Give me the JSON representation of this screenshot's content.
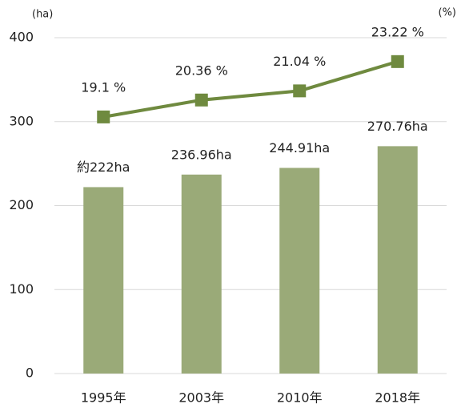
{
  "chart_data": {
    "type": "bar_line",
    "categories": [
      "1995年",
      "2003年",
      "2010年",
      "2018年"
    ],
    "y_unit": "(ha)",
    "y2_unit": "(%)",
    "series": [
      {
        "type": "bar",
        "color": "#9aaa78",
        "values": [
          222,
          236.96,
          244.91,
          270.76
        ],
        "value_labels": [
          "約222ha",
          "236.96ha",
          "244.91ha",
          "270.76ha"
        ]
      },
      {
        "type": "line",
        "axis": "y2",
        "color": "#6f8a3f",
        "values": [
          19.1,
          20.36,
          21.04,
          23.22
        ],
        "value_labels": [
          "19.1 %",
          "20.36 %",
          "21.04 %",
          "23.22 %"
        ]
      }
    ],
    "ylim": [
      0,
      400
    ],
    "yticks": [
      0,
      100,
      200,
      300,
      400
    ],
    "y2lim": [
      0,
      25
    ],
    "grid": true
  }
}
